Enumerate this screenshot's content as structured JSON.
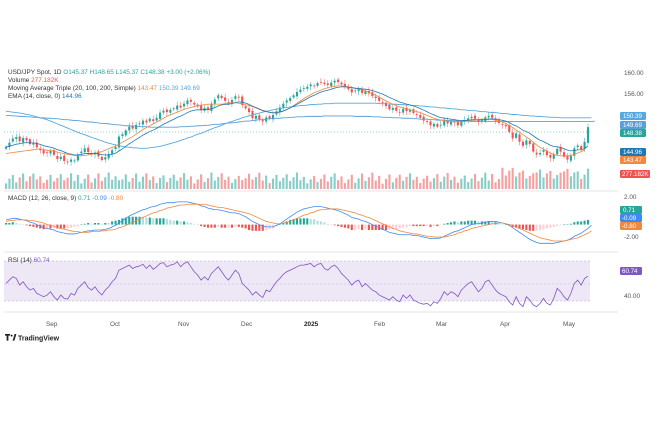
{
  "colors": {
    "up": "#26a69a",
    "down": "#ef5350",
    "ma20": "#f0883e",
    "ma100": "#56a9e0",
    "ma200": "#5aa0d8",
    "ema": "#1f77b4",
    "macd": "#3d8bf0",
    "signal": "#f0883e",
    "rsi": "#7e57c2",
    "rsi_band": "#ede7f6"
  },
  "header": {
    "symbol": "USD/JPY Spot, 1D",
    "ohlc": "O145.37 H148.65 L145.37 C148.38 +3.00 (+2.06%)",
    "volume_label": "Volume",
    "volume_value": "277.182K",
    "ma_label": "Moving Average Triple (20, 100, 200, Simple)",
    "ma_v1": "143.47",
    "ma_v2": "150.39",
    "ma_v3": "149.69",
    "ema_label": "EMA (14, close, 0)",
    "ema_value": "144.96",
    "macd_label": "MACD (12, 26, close, 9)",
    "macd_v1": "0.71",
    "macd_v2": "-0.09",
    "macd_v3": "-0.80",
    "rsi_label": "RSI (14)",
    "rsi_value": "60.74"
  },
  "price_axis": {
    "ticks": [
      "160.00",
      "156.00"
    ]
  },
  "price_badges": [
    {
      "name": "ma100-badge",
      "text": "150.39",
      "color": "#56a9e0"
    },
    {
      "name": "ma200-badge",
      "text": "149.69",
      "color": "#5aa0d8"
    },
    {
      "name": "price-badge",
      "text": "148.38",
      "color": "#26a69a"
    },
    {
      "name": "ema-badge",
      "text": "144.96",
      "color": "#1f77b4"
    },
    {
      "name": "ma20-badge",
      "text": "143.47",
      "color": "#f0883e"
    },
    {
      "name": "volume-badge",
      "text": "277.182K",
      "color": "#ef5350"
    }
  ],
  "macd_axis": {
    "ticks": [
      "2.00",
      "-2.00"
    ]
  },
  "macd_badges": [
    {
      "name": "macd-hist-badge",
      "text": "0.71",
      "color": "#26a69a"
    },
    {
      "name": "macd-line-badge",
      "text": "-0.09",
      "color": "#3d8bf0"
    },
    {
      "name": "macd-signal-badge",
      "text": "-0.80",
      "color": "#f0883e"
    }
  ],
  "rsi_axis": {
    "ticks": [
      "40.00"
    ]
  },
  "rsi_badges": [
    {
      "name": "rsi-badge",
      "text": "60.74",
      "color": "#7e57c2"
    }
  ],
  "months": [
    "Sep",
    "Oct",
    "Nov",
    "Dec",
    "2025",
    "Feb",
    "Mar",
    "Apr",
    "May"
  ],
  "branding": "TradingView",
  "chart_data": {
    "type": "candlestick",
    "price_range": [
      138,
      161
    ],
    "close": [
      144.2,
      145.1,
      146.0,
      146.3,
      145.4,
      146.1,
      145.6,
      144.8,
      145.0,
      144.1,
      143.5,
      142.8,
      142.9,
      143.4,
      142.5,
      141.6,
      142.1,
      141.2,
      140.9,
      141.5,
      141.3,
      142.6,
      143.2,
      143.9,
      143.1,
      142.6,
      143.0,
      142.2,
      141.4,
      142.0,
      142.7,
      143.5,
      144.2,
      146.4,
      146.9,
      147.7,
      148.5,
      148.1,
      148.9,
      149.2,
      149.8,
      149.4,
      150.2,
      149.7,
      150.4,
      151.5,
      151.9,
      151.6,
      152.1,
      152.4,
      153.0,
      152.6,
      153.4,
      154.1,
      153.8,
      153.2,
      152.8,
      152.0,
      152.5,
      152.1,
      153.4,
      154.3,
      155.2,
      154.6,
      154.0,
      153.5,
      154.2,
      155.0,
      154.8,
      153.1,
      152.4,
      151.6,
      150.3,
      150.8,
      150.1,
      149.6,
      150.5,
      150.2,
      151.0,
      151.8,
      152.6,
      153.4,
      154.1,
      154.6,
      155.2,
      155.9,
      156.4,
      156.7,
      157.0,
      157.5,
      157.2,
      157.8,
      158.0,
      157.6,
      157.4,
      157.9,
      158.3,
      158.0,
      157.5,
      157.1,
      156.5,
      155.8,
      156.2,
      156.5,
      155.7,
      156.1,
      155.6,
      155.0,
      154.6,
      154.0,
      153.6,
      152.9,
      152.2,
      152.5,
      151.9,
      151.5,
      152.3,
      151.8,
      152.1,
      151.4,
      151.0,
      150.4,
      149.8,
      149.5,
      148.8,
      149.1,
      148.5,
      148.9,
      149.7,
      149.2,
      149.6,
      149.4,
      148.8,
      149.5,
      149.9,
      150.3,
      150.6,
      150.2,
      149.6,
      149.9,
      150.5,
      150.8,
      150.4,
      149.8,
      149.3,
      148.9,
      148.6,
      147.4,
      146.0,
      147.1,
      145.3,
      144.4,
      145.6,
      144.8,
      143.2,
      142.6,
      142.9,
      143.5,
      142.4,
      141.9,
      142.6,
      143.8,
      143.2,
      142.1,
      141.5,
      142.3,
      143.9,
      144.5,
      143.7,
      145.3,
      148.4
    ],
    "open_offsets": "derived",
    "ma20": [
      142.8,
      142.9,
      143.0,
      143.1,
      143.2,
      143.3,
      143.4,
      143.5,
      143.6,
      143.7,
      143.8,
      143.6,
      143.5,
      143.4,
      143.3,
      143.1,
      142.9,
      142.8,
      142.6,
      142.5,
      142.4,
      142.3,
      142.3,
      142.4,
      142.5,
      142.6,
      142.8,
      143.0,
      143.2,
      143.5,
      143.8,
      144.1,
      144.4,
      144.8,
      145.2,
      145.6,
      146.0,
      146.4,
      146.9,
      147.4,
      147.9,
      148.3,
      148.7,
      149.1,
      149.5,
      149.9,
      150.3,
      150.7,
      151.0,
      151.3,
      151.6,
      151.9,
      152.2,
      152.4,
      152.6,
      152.8,
      153.0,
      153.1,
      153.2,
      153.3,
      153.3,
      153.3,
      153.3,
      153.3,
      153.4,
      153.5,
      153.6,
      153.6,
      153.5,
      153.4,
      153.2,
      153.0,
      152.8,
      152.5,
      152.2,
      152.0,
      151.8,
      151.6,
      151.5,
      151.5,
      151.6,
      151.8,
      152.1,
      152.5,
      153.0,
      153.5,
      154.0,
      154.5,
      154.9,
      155.3,
      155.7,
      156.0,
      156.3,
      156.6,
      156.8,
      157.0,
      157.1,
      157.2,
      157.2,
      157.1,
      157.0,
      156.9,
      156.7,
      156.5,
      156.3,
      156.1,
      155.8,
      155.5,
      155.2,
      154.8,
      154.4,
      154.0,
      153.6,
      153.3,
      153.0,
      152.7,
      152.5,
      152.3,
      152.1,
      151.9,
      151.7,
      151.5,
      151.2,
      150.9,
      150.6,
      150.3,
      150.1,
      149.9,
      149.8,
      149.7,
      149.6,
      149.6,
      149.5,
      149.5,
      149.6,
      149.7,
      149.8,
      149.9,
      150.0,
      150.1,
      150.1,
      150.1,
      150.0,
      149.9,
      149.7,
      149.5,
      149.2,
      148.8,
      148.3,
      147.8,
      147.3,
      146.8,
      146.3,
      145.8,
      145.2,
      144.6,
      144.1,
      143.7,
      143.3,
      142.9,
      142.6,
      142.4,
      142.3,
      142.3,
      142.3,
      142.4,
      142.6,
      142.9,
      143.2,
      143.47
    ],
    "ma100": [
      151.8,
      151.7,
      151.6,
      151.5,
      151.4,
      151.3,
      151.1,
      151.0,
      150.8,
      150.6,
      150.4,
      150.2,
      150.0,
      149.7,
      149.4,
      149.1,
      148.8,
      148.5,
      148.2,
      147.9,
      147.6,
      147.3,
      147.0,
      146.8,
      146.5,
      146.2,
      146.0,
      145.7,
      145.5,
      145.2,
      145.0,
      144.8,
      144.6,
      144.5,
      144.3,
      144.2,
      144.1,
      144.0,
      144.0,
      143.9,
      143.9,
      143.9,
      144.0,
      144.1,
      144.2,
      144.3,
      144.5,
      144.7,
      144.9,
      145.1,
      145.3,
      145.6,
      145.8,
      146.1,
      146.3,
      146.6,
      146.9,
      147.1,
      147.4,
      147.7,
      148.0,
      148.3,
      148.5,
      148.8,
      149.1,
      149.4,
      149.6,
      149.9,
      150.1,
      150.4,
      150.6,
      150.8,
      151.0,
      151.2,
      151.4,
      151.6,
      151.8,
      151.9,
      152.1,
      152.2,
      152.4,
      152.5,
      152.6,
      152.7,
      152.8,
      152.9,
      153.0,
      153.0,
      153.1,
      153.2,
      153.2,
      153.3,
      153.3,
      153.4,
      153.4,
      153.4,
      153.5,
      153.5,
      153.5,
      153.5,
      153.5,
      153.5,
      153.5,
      153.5,
      153.5,
      153.5,
      153.5,
      153.5,
      153.5,
      153.4,
      153.4,
      153.4,
      153.3,
      153.3,
      153.3,
      153.2,
      153.2,
      153.1,
      153.1,
      153.0,
      153.0,
      152.9,
      152.9,
      152.8,
      152.7,
      152.7,
      152.6,
      152.5,
      152.5,
      152.4,
      152.3,
      152.3,
      152.2,
      152.1,
      152.1,
      152.0,
      151.9,
      151.9,
      151.8,
      151.7,
      151.7,
      151.6,
      151.5,
      151.5,
      151.4,
      151.3,
      151.3,
      151.2,
      151.1,
      151.1,
      151.0,
      150.9,
      150.9,
      150.8,
      150.8,
      150.7,
      150.7,
      150.6,
      150.6,
      150.5,
      150.5,
      150.5,
      150.4,
      150.4,
      150.4,
      150.39,
      150.39,
      150.39,
      150.39,
      150.39,
      150.39,
      150.39
    ],
    "ma200": [
      150.9,
      150.9,
      150.8,
      150.8,
      150.7,
      150.7,
      150.6,
      150.6,
      150.5,
      150.5,
      150.4,
      150.4,
      150.3,
      150.3,
      150.2,
      150.2,
      150.1,
      150.0,
      150.0,
      149.9,
      149.8,
      149.8,
      149.7,
      149.6,
      149.5,
      149.5,
      149.4,
      149.3,
      149.2,
      149.2,
      149.1,
      149.0,
      148.9,
      148.9,
      148.8,
      148.7,
      148.7,
      148.6,
      148.6,
      148.5,
      148.5,
      148.5,
      148.4,
      148.4,
      148.4,
      148.4,
      148.4,
      148.4,
      148.4,
      148.4,
      148.4,
      148.5,
      148.5,
      148.5,
      148.6,
      148.6,
      148.7,
      148.7,
      148.8,
      148.8,
      148.9,
      149.0,
      149.0,
      149.1,
      149.2,
      149.3,
      149.3,
      149.4,
      149.5,
      149.6,
      149.7,
      149.7,
      149.8,
      149.9,
      150.0,
      150.0,
      150.1,
      150.2,
      150.2,
      150.3,
      150.3,
      150.4,
      150.4,
      150.5,
      150.5,
      150.6,
      150.6,
      150.6,
      150.7,
      150.7,
      150.7,
      150.7,
      150.7,
      150.8,
      150.8,
      150.8,
      150.8,
      150.8,
      150.8,
      150.8,
      150.8,
      150.8,
      150.7,
      150.7,
      150.7,
      150.7,
      150.7,
      150.6,
      150.6,
      150.6,
      150.5,
      150.5,
      150.5,
      150.4,
      150.4,
      150.4,
      150.3,
      150.3,
      150.3,
      150.2,
      150.2,
      150.1,
      150.1,
      150.1,
      150.0,
      150.0,
      149.9,
      149.9,
      149.9,
      149.8,
      149.8,
      149.8,
      149.7,
      149.7,
      149.7,
      149.7,
      149.6,
      149.6,
      149.6,
      149.6,
      149.6,
      149.6,
      149.6,
      149.6,
      149.6,
      149.6,
      149.6,
      149.6,
      149.6,
      149.6,
      149.6,
      149.6,
      149.6,
      149.6,
      149.6,
      149.6,
      149.6,
      149.6,
      149.6,
      149.6,
      149.6,
      149.6,
      149.6,
      149.6,
      149.6,
      149.6,
      149.6,
      149.6,
      149.6,
      149.6,
      149.6,
      149.6,
      149.69
    ],
    "macd": [
      0.6,
      0.7,
      0.8,
      0.8,
      0.7,
      0.6,
      0.5,
      0.3,
      0.2,
      0.0,
      -0.2,
      -0.4,
      -0.5,
      -0.6,
      -0.7,
      -0.9,
      -1.0,
      -1.1,
      -1.2,
      -1.2,
      -1.2,
      -1.1,
      -1.0,
      -0.9,
      -0.8,
      -0.8,
      -0.7,
      -0.7,
      -0.7,
      -0.6,
      -0.5,
      -0.3,
      -0.1,
      0.2,
      0.5,
      0.8,
      1.1,
      1.3,
      1.5,
      1.7,
      1.9,
      2.0,
      2.2,
      2.3,
      2.4,
      2.6,
      2.7,
      2.8,
      2.8,
      2.8,
      2.9,
      2.9,
      2.9,
      2.9,
      2.8,
      2.7,
      2.6,
      2.4,
      2.3,
      2.1,
      2.0,
      1.9,
      1.9,
      1.8,
      1.7,
      1.6,
      1.5,
      1.5,
      1.4,
      1.2,
      1.0,
      0.7,
      0.4,
      0.2,
      0.0,
      -0.2,
      -0.3,
      -0.3,
      -0.3,
      -0.1,
      0.1,
      0.4,
      0.7,
      1.0,
      1.3,
      1.6,
      1.8,
      2.0,
      2.1,
      2.2,
      2.3,
      2.3,
      2.3,
      2.2,
      2.1,
      2.0,
      1.9,
      1.8,
      1.6,
      1.4,
      1.2,
      0.9,
      0.8,
      0.7,
      0.5,
      0.4,
      0.2,
      0.0,
      -0.2,
      -0.4,
      -0.6,
      -0.8,
      -1.0,
      -1.1,
      -1.2,
      -1.3,
      -1.3,
      -1.3,
      -1.3,
      -1.4,
      -1.4,
      -1.5,
      -1.6,
      -1.7,
      -1.8,
      -1.8,
      -1.8,
      -1.7,
      -1.5,
      -1.3,
      -1.1,
      -0.9,
      -0.8,
      -0.6,
      -0.4,
      -0.2,
      0.0,
      0.1,
      0.1,
      0.2,
      0.3,
      0.4,
      0.4,
      0.4,
      0.3,
      0.2,
      0.1,
      -0.1,
      -0.4,
      -0.7,
      -1.0,
      -1.3,
      -1.6,
      -1.9,
      -2.1,
      -2.3,
      -2.4,
      -2.4,
      -2.4,
      -2.4,
      -2.4,
      -2.3,
      -2.2,
      -2.1,
      -2.0,
      -1.8,
      -1.5,
      -1.3,
      -1.1,
      -0.8,
      -0.5,
      -0.09
    ],
    "macd_signal": [
      0.4,
      0.5,
      0.5,
      0.6,
      0.6,
      0.6,
      0.6,
      0.5,
      0.5,
      0.4,
      0.3,
      0.2,
      0.0,
      -0.1,
      -0.2,
      -0.4,
      -0.5,
      -0.6,
      -0.7,
      -0.8,
      -0.9,
      -0.9,
      -1.0,
      -1.0,
      -1.0,
      -0.9,
      -0.9,
      -0.9,
      -0.8,
      -0.8,
      -0.7,
      -0.7,
      -0.6,
      -0.4,
      -0.3,
      -0.1,
      0.1,
      0.3,
      0.5,
      0.7,
      0.9,
      1.1,
      1.3,
      1.5,
      1.6,
      1.8,
      1.9,
      2.1,
      2.2,
      2.3,
      2.4,
      2.5,
      2.5,
      2.6,
      2.6,
      2.6,
      2.6,
      2.6,
      2.6,
      2.5,
      2.4,
      2.3,
      2.2,
      2.2,
      2.1,
      2.0,
      1.9,
      1.8,
      1.7,
      1.6,
      1.5,
      1.4,
      1.2,
      1.0,
      0.8,
      0.6,
      0.4,
      0.3,
      0.2,
      0.1,
      0.1,
      0.2,
      0.3,
      0.4,
      0.6,
      0.8,
      1.0,
      1.2,
      1.3,
      1.5,
      1.6,
      1.8,
      1.9,
      1.9,
      2.0,
      2.0,
      2.0,
      2.0,
      1.9,
      1.8,
      1.7,
      1.6,
      1.5,
      1.3,
      1.2,
      1.0,
      0.9,
      0.7,
      0.5,
      0.3,
      0.1,
      -0.1,
      -0.3,
      -0.5,
      -0.6,
      -0.8,
      -0.9,
      -1.0,
      -1.1,
      -1.2,
      -1.2,
      -1.3,
      -1.4,
      -1.5,
      -1.5,
      -1.6,
      -1.6,
      -1.6,
      -1.6,
      -1.5,
      -1.4,
      -1.3,
      -1.1,
      -1.0,
      -0.8,
      -0.7,
      -0.5,
      -0.4,
      -0.3,
      -0.2,
      -0.1,
      0.0,
      0.1,
      0.1,
      0.2,
      0.2,
      0.1,
      0.0,
      -0.1,
      -0.3,
      -0.5,
      -0.7,
      -0.9,
      -1.1,
      -1.3,
      -1.5,
      -1.7,
      -1.8,
      -1.9,
      -2.0,
      -2.1,
      -2.1,
      -2.1,
      -2.1,
      -2.0,
      -1.9,
      -1.8,
      -1.7,
      -1.5,
      -1.3,
      -1.1,
      -0.8
    ],
    "macd_ylim": [
      -3.0,
      3.4
    ],
    "rsi": [
      52,
      56,
      60,
      58,
      50,
      54,
      48,
      44,
      46,
      40,
      38,
      36,
      38,
      42,
      36,
      32,
      38,
      34,
      33,
      40,
      38,
      46,
      50,
      54,
      47,
      44,
      48,
      42,
      38,
      44,
      48,
      54,
      58,
      68,
      70,
      72,
      74,
      70,
      72,
      73,
      75,
      70,
      74,
      69,
      72,
      76,
      77,
      72,
      74,
      75,
      78,
      72,
      76,
      78,
      72,
      66,
      62,
      56,
      60,
      56,
      64,
      68,
      72,
      66,
      60,
      56,
      62,
      68,
      64,
      52,
      48,
      44,
      38,
      42,
      38,
      35,
      44,
      42,
      48,
      54,
      58,
      63,
      66,
      68,
      70,
      72,
      74,
      74,
      75,
      76,
      72,
      75,
      76,
      70,
      68,
      72,
      74,
      70,
      64,
      60,
      56,
      50,
      54,
      56,
      48,
      52,
      48,
      44,
      42,
      38,
      36,
      34,
      32,
      36,
      32,
      30,
      38,
      34,
      38,
      32,
      30,
      28,
      27,
      28,
      25,
      30,
      28,
      34,
      42,
      38,
      42,
      40,
      36,
      44,
      48,
      52,
      54,
      48,
      42,
      46,
      54,
      56,
      50,
      44,
      40,
      38,
      36,
      30,
      26,
      36,
      28,
      24,
      36,
      32,
      26,
      24,
      28,
      34,
      28,
      26,
      34,
      46,
      42,
      36,
      32,
      40,
      52,
      56,
      50,
      58,
      60.74
    ],
    "rsi_range": [
      20,
      85
    ],
    "volume_last": "277.182K"
  }
}
